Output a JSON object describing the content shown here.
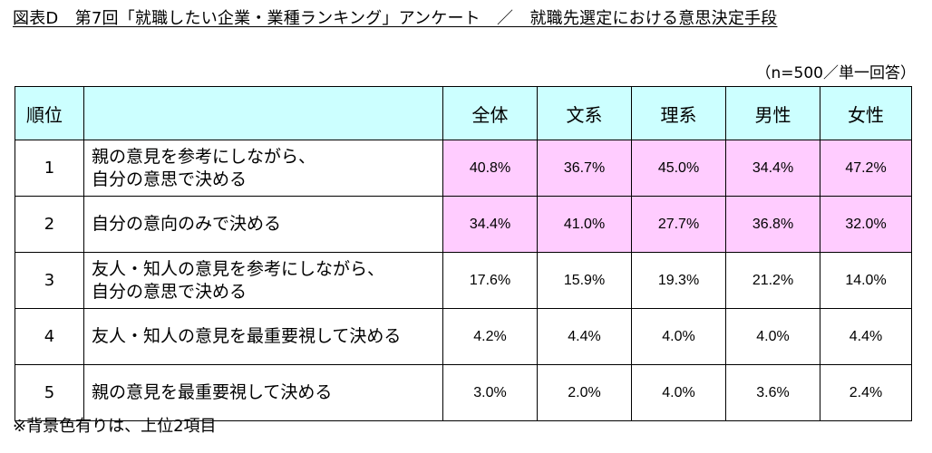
{
  "title": "図表D　第7回「就職したい企業・業種ランキング」アンケート　／　就職先選定における意思決定手段",
  "sample_note": "（n=500／単一回答）",
  "header": {
    "rank": "順位",
    "columns": [
      "全体",
      "文系",
      "理系",
      "男性",
      "女性"
    ]
  },
  "rows": [
    {
      "rank": "1",
      "line1": "親の意見を参考にしながら、",
      "line2": "自分の意思で決める",
      "values": [
        "40.8%",
        "36.7%",
        "45.0%",
        "34.4%",
        "47.2%"
      ]
    },
    {
      "rank": "2",
      "line1": "自分の意向のみで決める",
      "line2": "",
      "values": [
        "34.4%",
        "41.0%",
        "27.7%",
        "36.8%",
        "32.0%"
      ]
    },
    {
      "rank": "3",
      "line1": "友人・知人の意見を参考にしながら、",
      "line2": "自分の意思で決める",
      "values": [
        "17.6%",
        "15.9%",
        "19.3%",
        "21.2%",
        "14.0%"
      ]
    },
    {
      "rank": "4",
      "line1": "友人・知人の意見を最重要視して決める",
      "line2": "",
      "values": [
        "4.2%",
        "4.4%",
        "4.0%",
        "4.0%",
        "4.4%"
      ]
    },
    {
      "rank": "5",
      "line1": "親の意見を最重要視して決める",
      "line2": "",
      "values": [
        "3.0%",
        "2.0%",
        "4.0%",
        "3.6%",
        "2.4%"
      ]
    }
  ],
  "footnote": "※背景色有りは、上位2項目",
  "colors": {
    "header_bg": "#ccffff",
    "top2_bg": "#ffccff"
  }
}
